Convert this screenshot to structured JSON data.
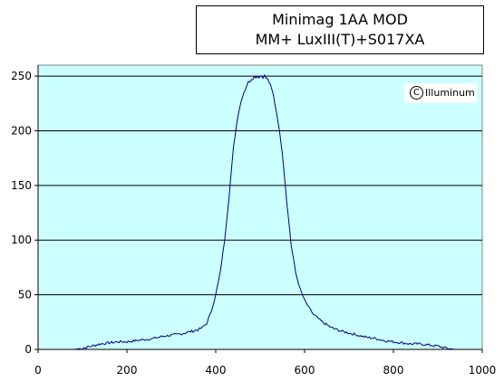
{
  "title": {
    "line1": "Minimag 1AA MOD",
    "line2": "MM+ LuxIII(T)+S017XA"
  },
  "watermark": {
    "symbol": "C",
    "text": "Illuminum"
  },
  "colors": {
    "plot_background": "#ccffff",
    "line": "#000080",
    "grid": "#000000"
  },
  "chart_data": {
    "type": "line",
    "title": "Minimag 1AA MOD MM+ LuxIII(T)+S017XA",
    "xlabel": "",
    "ylabel": "",
    "xlim": [
      0,
      1000
    ],
    "ylim": [
      0,
      260
    ],
    "x_ticks": [
      0,
      200,
      400,
      600,
      800,
      1000
    ],
    "y_ticks": [
      0,
      50,
      100,
      150,
      200,
      250
    ],
    "grid": "horizontal",
    "legend": "none",
    "series": [
      {
        "x": [
          80,
          100,
          120,
          140,
          160,
          180,
          200,
          220,
          240,
          260,
          280,
          300,
          320,
          340,
          360,
          370,
          380,
          390,
          400,
          410,
          420,
          430,
          440,
          450,
          460,
          470,
          480,
          490,
          500,
          510,
          520,
          530,
          540,
          550,
          560,
          570,
          580,
          590,
          600,
          610,
          620,
          640,
          660,
          680,
          700,
          720,
          740,
          760,
          780,
          800,
          820,
          840,
          860,
          880,
          900,
          920,
          940
        ],
        "y": [
          0,
          1,
          3,
          5,
          6,
          7,
          7,
          8,
          9,
          10,
          12,
          13,
          14,
          16,
          18,
          20,
          24,
          35,
          50,
          70,
          100,
          140,
          185,
          215,
          232,
          242,
          248,
          250,
          250,
          250,
          245,
          232,
          210,
          180,
          135,
          95,
          70,
          55,
          45,
          38,
          32,
          25,
          20,
          17,
          15,
          13,
          11,
          10,
          8,
          7,
          6,
          5,
          5,
          4,
          3,
          1,
          0
        ]
      }
    ]
  }
}
